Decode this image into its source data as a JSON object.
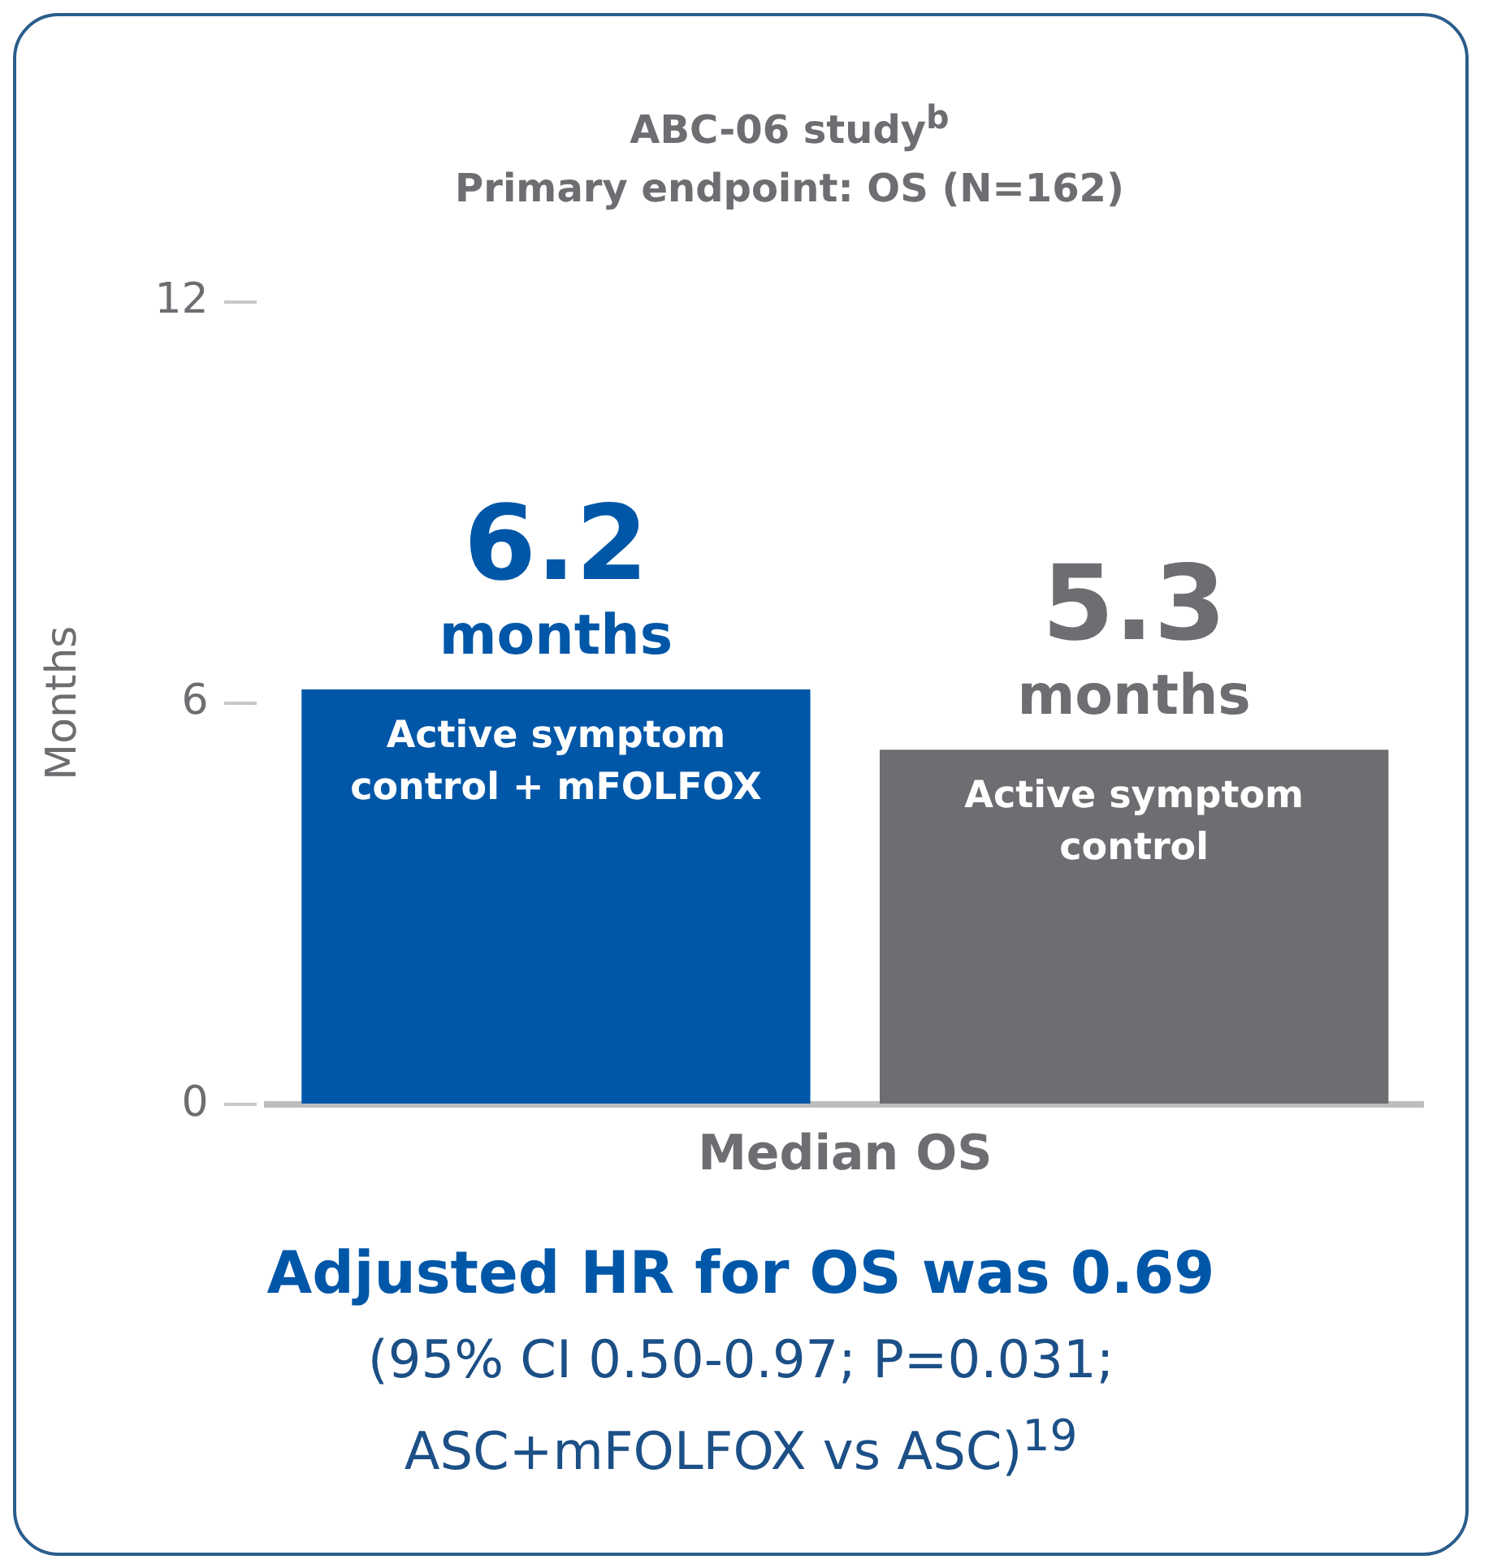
{
  "chart_data": {
    "type": "bar",
    "title": "ABC-06 study$^{b}$",
    "subtitle": "Primary endpoint: OS (N=162)",
    "ylabel": "Months",
    "xlabel": "Median OS",
    "categories": [
      "Active symptom control + mFOLFOX",
      "Active symptom control"
    ],
    "values": [
      6.2,
      5.3
    ],
    "colors": [
      "#0057a8",
      "#6d6e71"
    ],
    "value_labels": [
      "6.2 months",
      "5.3 months"
    ],
    "ylim": [
      0,
      12
    ],
    "yticks": [
      0,
      6,
      12
    ],
    "grid": false,
    "legend": false,
    "annotations": [
      "Adjusted HR for OS was 0.69",
      "(95% CI 0.50-0.97; P=0.031; ASC+mFOLFOX vs ASC)$^{19}$"
    ]
  }
}
